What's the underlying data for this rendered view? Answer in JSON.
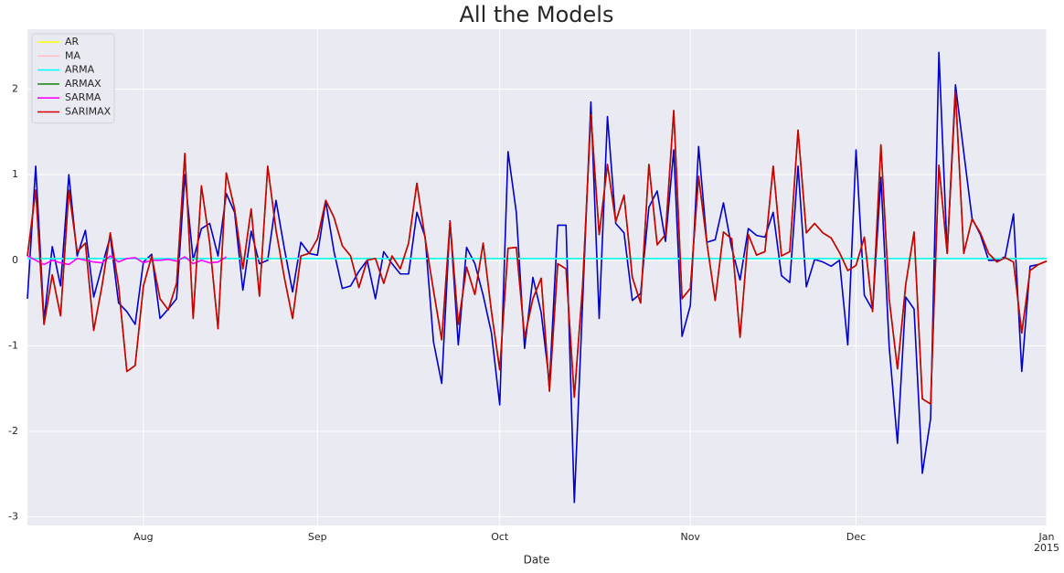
{
  "chart_data": {
    "type": "line",
    "title": "All the Models",
    "xlabel": "Date",
    "x": [
      "2014-07-14",
      "2014-07-15",
      "2014-07-16",
      "2014-07-17",
      "2014-07-18",
      "2014-07-21",
      "2014-07-22",
      "2014-07-23",
      "2014-07-24",
      "2014-07-25",
      "2014-07-28",
      "2014-07-29",
      "2014-07-30",
      "2014-07-31",
      "2014-08-01",
      "2014-08-04",
      "2014-08-05",
      "2014-08-06",
      "2014-08-07",
      "2014-08-08",
      "2014-08-11",
      "2014-08-12",
      "2014-08-13",
      "2014-08-14",
      "2014-08-15",
      "2014-08-18",
      "2014-08-19",
      "2014-08-20",
      "2014-08-21",
      "2014-08-22",
      "2014-08-25",
      "2014-08-26",
      "2014-08-27",
      "2014-08-28",
      "2014-08-29",
      "2014-09-01",
      "2014-09-02",
      "2014-09-03",
      "2014-09-04",
      "2014-09-05",
      "2014-09-08",
      "2014-09-09",
      "2014-09-10",
      "2014-09-11",
      "2014-09-12",
      "2014-09-15",
      "2014-09-16",
      "2014-09-17",
      "2014-09-18",
      "2014-09-19",
      "2014-09-22",
      "2014-09-23",
      "2014-09-24",
      "2014-09-25",
      "2014-09-26",
      "2014-09-29",
      "2014-09-30",
      "2014-10-01",
      "2014-10-02",
      "2014-10-03",
      "2014-10-06",
      "2014-10-07",
      "2014-10-08",
      "2014-10-09",
      "2014-10-10",
      "2014-10-13",
      "2014-10-14",
      "2014-10-15",
      "2014-10-16",
      "2014-10-17",
      "2014-10-20",
      "2014-10-21",
      "2014-10-22",
      "2014-10-23",
      "2014-10-24",
      "2014-10-27",
      "2014-10-28",
      "2014-10-29",
      "2014-10-30",
      "2014-10-31",
      "2014-11-03",
      "2014-11-04",
      "2014-11-05",
      "2014-11-06",
      "2014-11-07",
      "2014-11-10",
      "2014-11-11",
      "2014-11-12",
      "2014-11-13",
      "2014-11-14",
      "2014-11-17",
      "2014-11-18",
      "2014-11-19",
      "2014-11-20",
      "2014-11-21",
      "2014-11-24",
      "2014-11-25",
      "2014-11-26",
      "2014-11-27",
      "2014-11-28",
      "2014-12-01",
      "2014-12-02",
      "2014-12-03",
      "2014-12-04",
      "2014-12-05",
      "2014-12-08",
      "2014-12-09",
      "2014-12-10",
      "2014-12-11",
      "2014-12-12",
      "2014-12-15",
      "2014-12-16",
      "2014-12-17",
      "2014-12-18",
      "2014-12-19",
      "2014-12-22",
      "2014-12-23",
      "2014-12-24",
      "2014-12-25",
      "2014-12-26",
      "2014-12-29",
      "2014-12-30",
      "2014-12-31",
      "2015-01-01"
    ],
    "xticks": [
      {
        "value": "2014-08-01",
        "label": [
          "Aug"
        ]
      },
      {
        "value": "2014-09-01",
        "label": [
          "Sep"
        ]
      },
      {
        "value": "2014-10-01",
        "label": [
          "Oct"
        ]
      },
      {
        "value": "2014-11-03",
        "label": [
          "Nov"
        ]
      },
      {
        "value": "2014-12-01",
        "label": [
          "Dec"
        ]
      },
      {
        "value": "2015-01-01",
        "label": [
          "Jan",
          "2015"
        ]
      }
    ],
    "ylim": [
      -3.1,
      2.7
    ],
    "yticks": [
      -3,
      -2,
      -1,
      0,
      1,
      2
    ],
    "grid": true,
    "legend": "upper left",
    "series": [
      {
        "color": "#0000cd",
        "values": [
          -0.45,
          1.1,
          -0.7,
          0.16,
          -0.3,
          1.0,
          0.05,
          0.35,
          -0.43,
          -0.07,
          0.28,
          -0.5,
          -0.6,
          -0.75,
          -0.02,
          0.07,
          -0.68,
          -0.57,
          -0.45,
          1.0,
          0.0,
          0.37,
          0.43,
          0.05,
          0.78,
          0.56,
          -0.35,
          0.34,
          -0.04,
          0.0,
          0.7,
          0.14,
          -0.37,
          0.21,
          0.08,
          0.06,
          0.69,
          0.1,
          -0.33,
          -0.3,
          -0.13,
          0.0,
          -0.45,
          0.1,
          -0.04,
          -0.16,
          -0.16,
          0.56,
          0.27,
          -0.95,
          -1.44,
          0.46,
          -0.99,
          0.15,
          -0.04,
          -0.41,
          -0.85,
          -1.69,
          1.27,
          0.56,
          -1.03,
          -0.2,
          -0.61,
          -1.44,
          0.41,
          0.41,
          -2.83,
          -0.5,
          1.85,
          -0.68,
          1.68,
          0.43,
          0.32,
          -0.47,
          -0.39,
          0.62,
          0.81,
          0.22,
          1.29,
          -0.89,
          -0.53,
          1.33,
          0.21,
          0.24,
          0.67,
          0.14,
          -0.23,
          0.37,
          0.29,
          0.27,
          0.56,
          -0.18,
          -0.26,
          1.1,
          -0.31,
          0.01,
          -0.02,
          -0.07,
          0.0,
          -0.99,
          1.29,
          -0.41,
          -0.58,
          0.97,
          -1.01,
          -2.14,
          -0.43,
          -0.57,
          -2.49,
          -1.85,
          2.43,
          0.08,
          2.05,
          1.26,
          0.49,
          0.3,
          0.0,
          0.0,
          0.04,
          0.54,
          -1.3,
          -0.07,
          -0.05,
          -0.01
        ]
      },
      {
        "name": "AR",
        "color": "#ffff00",
        "values": [
          0.02,
          0.02,
          0.02,
          0.02,
          0.02,
          0.02,
          0.02,
          0.02,
          0.02,
          0.02,
          0.02,
          0.02,
          0.02,
          0.02,
          0.02,
          0.02,
          0.02,
          0.02,
          0.02,
          0.02,
          0.02,
          0.02,
          0.02,
          0.02,
          0.02,
          0.02,
          0.02,
          0.02,
          0.02,
          0.02,
          0.02,
          0.02,
          0.02,
          0.02,
          0.02,
          0.02,
          0.02,
          0.02,
          0.02,
          0.02,
          0.02,
          0.02,
          0.02,
          0.02,
          0.02,
          0.02,
          0.02,
          0.02,
          0.02,
          0.02,
          0.02,
          0.02,
          0.02,
          0.02,
          0.02,
          0.02,
          0.02,
          0.02,
          0.02,
          0.02,
          0.02,
          0.02,
          0.02,
          0.02,
          0.02,
          0.02,
          0.02,
          0.02,
          0.02,
          0.02,
          0.02,
          0.02,
          0.02,
          0.02,
          0.02,
          0.02,
          0.02,
          0.02,
          0.02,
          0.02,
          0.02,
          0.02,
          0.02,
          0.02,
          0.02,
          0.02,
          0.02,
          0.02,
          0.02,
          0.02,
          0.02,
          0.02,
          0.02,
          0.02,
          0.02,
          0.02,
          0.02,
          0.02,
          0.02,
          0.02,
          0.02,
          0.02,
          0.02,
          0.02,
          0.02,
          0.02,
          0.02,
          0.02,
          0.02,
          0.02,
          0.02,
          0.02,
          0.02,
          0.02,
          0.02,
          0.02,
          0.02,
          0.02,
          0.02,
          0.02,
          0.02,
          0.02,
          0.02,
          0.02
        ]
      },
      {
        "name": "MA",
        "color": "#ffc0cb",
        "values": [
          0.02,
          0.02,
          0.02,
          0.02,
          0.02,
          0.02,
          0.02,
          0.02,
          0.02,
          0.02,
          0.02,
          0.02,
          0.02,
          0.02,
          0.02,
          0.02,
          0.02,
          0.02,
          0.02,
          0.02,
          0.02,
          0.02,
          0.02,
          0.02,
          0.02,
          0.02,
          0.02,
          0.02,
          0.02,
          0.02,
          0.02,
          0.02,
          0.02,
          0.02,
          0.02,
          0.02,
          0.02,
          0.02,
          0.02,
          0.02,
          0.02,
          0.02,
          0.02,
          0.02,
          0.02,
          0.02,
          0.02,
          0.02,
          0.02,
          0.02,
          0.02,
          0.02,
          0.02,
          0.02,
          0.02,
          0.02,
          0.02,
          0.02,
          0.02,
          0.02,
          0.02,
          0.02,
          0.02,
          0.02,
          0.02,
          0.02,
          0.02,
          0.02,
          0.02,
          0.02,
          0.02,
          0.02,
          0.02,
          0.02,
          0.02,
          0.02,
          0.02,
          0.02,
          0.02,
          0.02,
          0.02,
          0.02,
          0.02,
          0.02,
          0.02,
          0.02,
          0.02,
          0.02,
          0.02,
          0.02,
          0.02,
          0.02,
          0.02,
          0.02,
          0.02,
          0.02,
          0.02,
          0.02,
          0.02,
          0.02,
          0.02,
          0.02,
          0.02,
          0.02,
          0.02,
          0.02,
          0.02,
          0.02,
          0.02,
          0.02,
          0.02,
          0.02,
          0.02,
          0.02,
          0.02,
          0.02,
          0.02,
          0.02,
          0.02,
          0.02,
          0.02,
          0.02,
          0.02,
          0.02
        ]
      },
      {
        "name": "ARMA",
        "color": "#00ffff",
        "values": [
          0.02,
          0.02,
          0.02,
          0.02,
          0.02,
          0.02,
          0.02,
          0.02,
          0.02,
          0.02,
          0.02,
          0.02,
          0.02,
          0.02,
          0.02,
          0.02,
          0.02,
          0.02,
          0.02,
          0.02,
          0.02,
          0.02,
          0.02,
          0.02,
          0.02,
          0.02,
          0.02,
          0.02,
          0.02,
          0.02,
          0.02,
          0.02,
          0.02,
          0.02,
          0.02,
          0.02,
          0.02,
          0.02,
          0.02,
          0.02,
          0.02,
          0.02,
          0.02,
          0.02,
          0.02,
          0.02,
          0.02,
          0.02,
          0.02,
          0.02,
          0.02,
          0.02,
          0.02,
          0.02,
          0.02,
          0.02,
          0.02,
          0.02,
          0.02,
          0.02,
          0.02,
          0.02,
          0.02,
          0.02,
          0.02,
          0.02,
          0.02,
          0.02,
          0.02,
          0.02,
          0.02,
          0.02,
          0.02,
          0.02,
          0.02,
          0.02,
          0.02,
          0.02,
          0.02,
          0.02,
          0.02,
          0.02,
          0.02,
          0.02,
          0.02,
          0.02,
          0.02,
          0.02,
          0.02,
          0.02,
          0.02,
          0.02,
          0.02,
          0.02,
          0.02,
          0.02,
          0.02,
          0.02,
          0.02,
          0.02,
          0.02,
          0.02,
          0.02,
          0.02,
          0.02,
          0.02,
          0.02,
          0.02,
          0.02,
          0.02,
          0.02,
          0.02,
          0.02,
          0.02,
          0.02,
          0.02,
          0.02,
          0.02,
          0.02,
          0.02,
          0.02,
          0.02,
          0.02,
          0.02
        ]
      },
      {
        "name": "ARMAX",
        "color": "#228b22",
        "values": [
          0.05,
          0.82,
          -0.75,
          -0.17,
          -0.65,
          0.82,
          0.1,
          0.2,
          -0.82,
          -0.3,
          0.32,
          -0.3,
          -1.3,
          -1.23,
          -0.3,
          0.05,
          -0.45,
          -0.58,
          -0.27,
          1.25,
          -0.68,
          0.87,
          0.2,
          -0.8,
          1.02,
          0.6,
          -0.1,
          0.6,
          -0.42,
          1.1,
          0.35,
          -0.2,
          -0.68,
          0.05,
          0.08,
          0.25,
          0.7,
          0.5,
          0.17,
          0.05,
          -0.32,
          0.0,
          0.02,
          -0.27,
          0.05,
          -0.1,
          0.2,
          0.9,
          0.25,
          -0.35,
          -0.93,
          0.45,
          -0.75,
          -0.08,
          -0.4,
          0.2,
          -0.6,
          -1.28,
          0.14,
          0.15,
          -0.9,
          -0.45,
          -0.21,
          -1.53,
          -0.04,
          -0.1,
          -1.6,
          -0.3,
          1.7,
          0.3,
          1.12,
          0.45,
          0.76,
          -0.2,
          -0.5,
          1.12,
          0.18,
          0.3,
          1.75,
          -0.45,
          -0.33,
          0.98,
          0.2,
          -0.47,
          0.33,
          0.25,
          -0.9,
          0.3,
          0.06,
          0.1,
          1.1,
          0.05,
          0.1,
          1.52,
          0.32,
          0.43,
          0.32,
          0.26,
          0.09,
          -0.12,
          -0.06,
          0.27,
          -0.6,
          1.35,
          -0.45,
          -1.27,
          -0.28,
          0.33,
          -1.62,
          -1.68,
          1.11,
          0.08,
          1.97,
          0.08,
          0.48,
          0.32,
          0.08,
          -0.02,
          0.03,
          -0.02,
          -0.85,
          -0.12,
          -0.05,
          -0.01
        ]
      },
      {
        "name": "SARMA",
        "color": "#ff00ff",
        "values": [
          0.05,
          0.0,
          -0.05,
          0.0,
          -0.03,
          -0.05,
          0.02,
          0.0,
          -0.02,
          -0.03,
          0.05,
          -0.02,
          0.02,
          0.03,
          -0.03,
          0.0,
          0.0,
          0.01,
          -0.01,
          0.04,
          -0.04,
          0.0,
          -0.03,
          -0.02,
          0.04,
          null,
          null,
          null,
          null,
          null,
          null,
          null,
          null,
          null,
          null,
          null,
          null,
          null,
          null,
          null,
          null,
          null,
          null,
          null,
          null,
          null,
          null,
          null,
          null,
          null,
          null,
          null,
          null,
          null,
          null,
          null,
          null,
          null,
          null,
          null,
          null,
          null,
          null,
          null,
          null,
          null,
          null,
          null,
          null,
          null,
          null,
          null,
          null,
          null,
          null,
          null,
          null,
          null,
          null,
          null,
          null,
          null,
          null,
          null,
          null,
          null,
          null,
          null,
          null,
          null,
          null,
          null,
          null,
          null,
          null,
          null,
          null,
          null,
          null,
          null,
          null,
          null,
          null,
          null,
          null,
          null,
          null,
          null,
          null,
          null,
          null,
          null,
          null,
          null,
          null,
          null,
          null,
          null,
          null,
          null,
          null,
          null,
          null,
          null
        ]
      },
      {
        "name": "SARIMAX",
        "color": "#d00000",
        "values": [
          0.05,
          0.82,
          -0.75,
          -0.17,
          -0.65,
          0.82,
          0.1,
          0.2,
          -0.82,
          -0.3,
          0.32,
          -0.3,
          -1.3,
          -1.23,
          -0.3,
          0.05,
          -0.45,
          -0.58,
          -0.27,
          1.25,
          -0.68,
          0.87,
          0.2,
          -0.8,
          1.02,
          0.6,
          -0.1,
          0.6,
          -0.42,
          1.1,
          0.35,
          -0.2,
          -0.68,
          0.05,
          0.08,
          0.25,
          0.7,
          0.5,
          0.17,
          0.05,
          -0.32,
          0.0,
          0.02,
          -0.27,
          0.05,
          -0.1,
          0.2,
          0.9,
          0.25,
          -0.35,
          -0.93,
          0.45,
          -0.75,
          -0.08,
          -0.4,
          0.2,
          -0.6,
          -1.28,
          0.14,
          0.15,
          -0.9,
          -0.45,
          -0.21,
          -1.53,
          -0.04,
          -0.1,
          -1.6,
          -0.3,
          1.7,
          0.3,
          1.12,
          0.45,
          0.76,
          -0.2,
          -0.5,
          1.12,
          0.18,
          0.3,
          1.75,
          -0.45,
          -0.33,
          0.98,
          0.2,
          -0.47,
          0.33,
          0.25,
          -0.9,
          0.3,
          0.06,
          0.1,
          1.1,
          0.05,
          0.1,
          1.52,
          0.32,
          0.43,
          0.32,
          0.26,
          0.09,
          -0.12,
          -0.06,
          0.27,
          -0.6,
          1.35,
          -0.45,
          -1.27,
          -0.28,
          0.33,
          -1.62,
          -1.68,
          1.11,
          0.08,
          1.97,
          0.08,
          0.48,
          0.32,
          0.08,
          -0.02,
          0.03,
          -0.02,
          -0.85,
          -0.12,
          -0.05,
          -0.01
        ]
      }
    ]
  }
}
